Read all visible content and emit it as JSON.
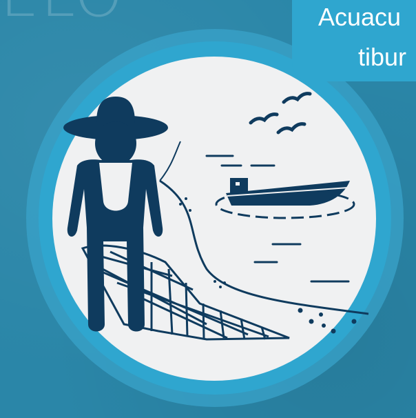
{
  "background_watermark": "ELO",
  "title": {
    "line1": "Acuacu",
    "line2": "tibur"
  },
  "colors": {
    "background": "#2a86a8",
    "ring": "#2fa6cf",
    "circle": "#f0f1f2",
    "icon": "#0f3b5e",
    "text": "#ffffff"
  },
  "icons": [
    "fisherman-icon",
    "fishing-net-icon",
    "boat-icon",
    "birds-icon",
    "shoreline-icon"
  ]
}
